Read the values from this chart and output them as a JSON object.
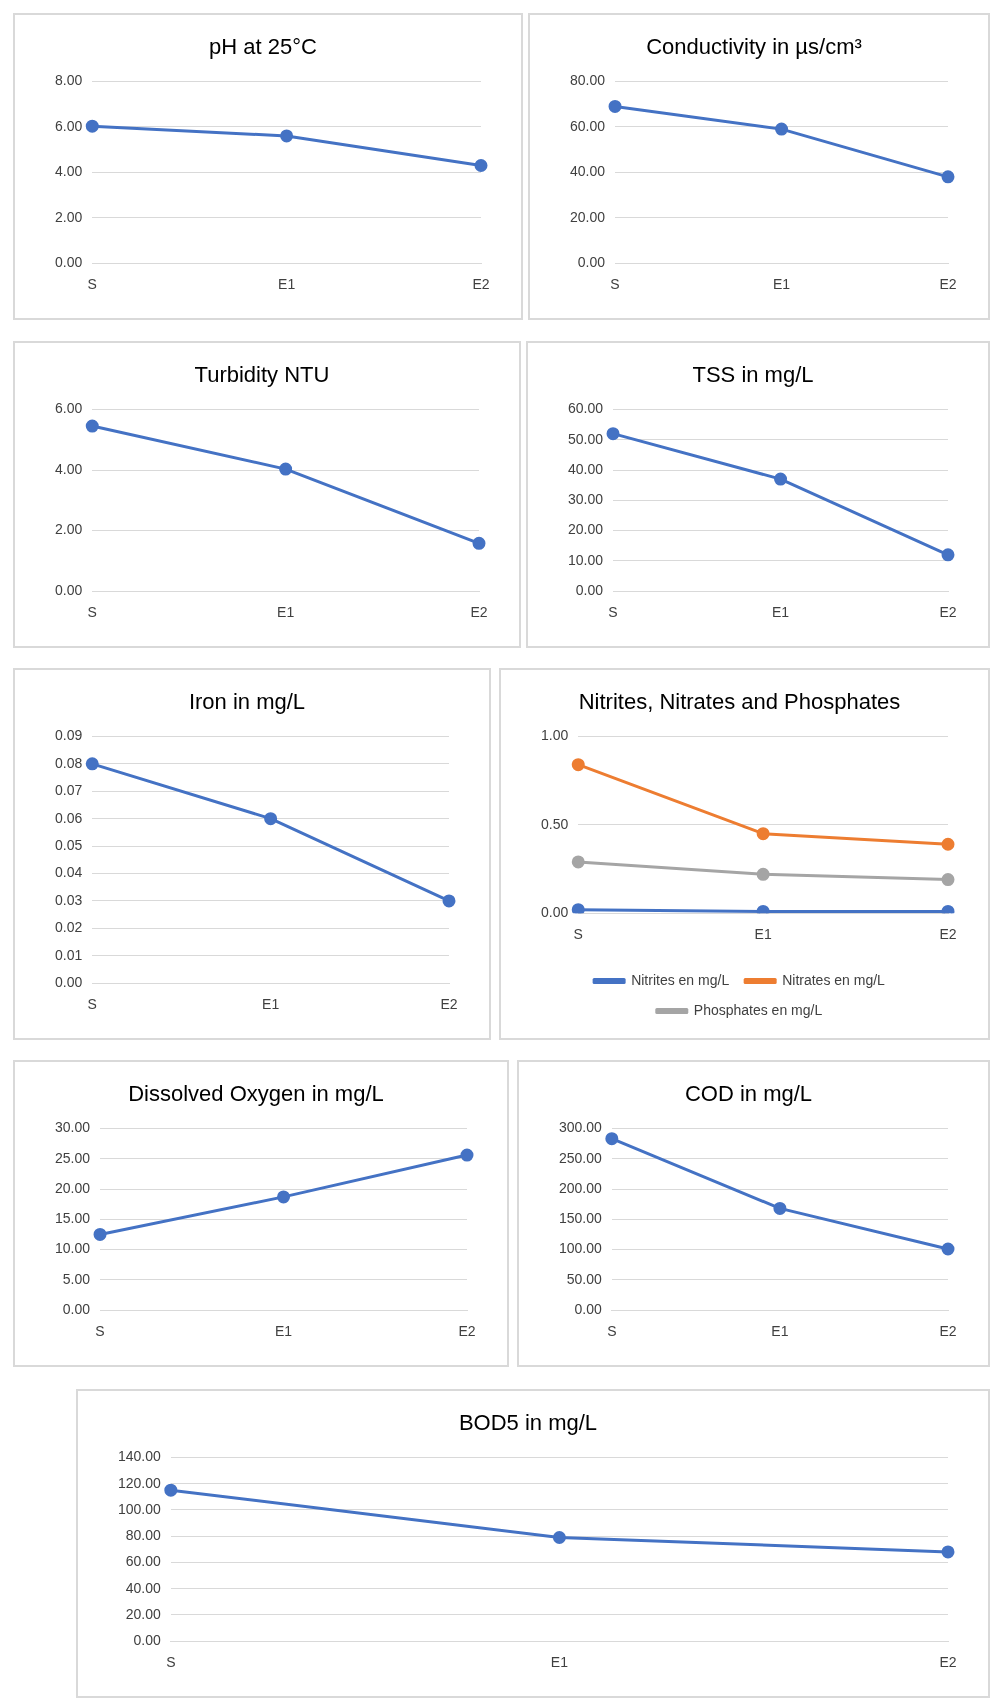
{
  "chart_data": [
    {
      "type": "line",
      "title": "pH at 25°C",
      "categories": [
        "S",
        "E1",
        "E2"
      ],
      "values": [
        6.03,
        5.6,
        4.3
      ],
      "color": "#4472c4",
      "ylim": [
        0,
        8
      ],
      "yticks": [
        {
          "value": 0,
          "label": "0.00"
        },
        {
          "value": 2,
          "label": "2.00"
        },
        {
          "value": 4,
          "label": "4.00"
        },
        {
          "value": 6,
          "label": "6.00"
        },
        {
          "value": 8,
          "label": "8.00"
        }
      ],
      "grid": "y",
      "marker": "circle"
    },
    {
      "type": "line",
      "title": "Conductivity in µs/cm³",
      "categories": [
        "S",
        "E1",
        "E2"
      ],
      "values": [
        69,
        59,
        38
      ],
      "color": "#4472c4",
      "ylim": [
        0,
        80
      ],
      "yticks": [
        {
          "value": 0,
          "label": "0.00"
        },
        {
          "value": 20,
          "label": "20.00"
        },
        {
          "value": 40,
          "label": "40.00"
        },
        {
          "value": 60,
          "label": "60.00"
        },
        {
          "value": 80,
          "label": "80.00"
        }
      ],
      "grid": "y",
      "marker": "circle"
    },
    {
      "type": "line",
      "title": "Turbidity NTU",
      "categories": [
        "S",
        "E1",
        "E2"
      ],
      "values": [
        5.45,
        4.03,
        1.58
      ],
      "color": "#4472c4",
      "ylim": [
        0,
        6
      ],
      "yticks": [
        {
          "value": 0,
          "label": "0.00"
        },
        {
          "value": 2,
          "label": "2.00"
        },
        {
          "value": 4,
          "label": "4.00"
        },
        {
          "value": 6,
          "label": "6.00"
        }
      ],
      "grid": "y",
      "marker": "circle"
    },
    {
      "type": "line",
      "title": "TSS in mg/L",
      "categories": [
        "S",
        "E1",
        "E2"
      ],
      "values": [
        52,
        37,
        12
      ],
      "color": "#4472c4",
      "ylim": [
        0,
        60
      ],
      "yticks": [
        {
          "value": 0,
          "label": "0.00"
        },
        {
          "value": 10,
          "label": "10.00"
        },
        {
          "value": 20,
          "label": "20.00"
        },
        {
          "value": 30,
          "label": "30.00"
        },
        {
          "value": 40,
          "label": "40.00"
        },
        {
          "value": 50,
          "label": "50.00"
        },
        {
          "value": 60,
          "label": "60.00"
        }
      ],
      "grid": "y",
      "marker": "circle"
    },
    {
      "type": "line",
      "title": "Iron in mg/L",
      "categories": [
        "S",
        "E1",
        "E2"
      ],
      "values": [
        0.08,
        0.06,
        0.03
      ],
      "color": "#4472c4",
      "ylim": [
        0,
        0.09
      ],
      "yticks": [
        {
          "value": 0,
          "label": "0.00"
        },
        {
          "value": 0.01,
          "label": "0.01"
        },
        {
          "value": 0.02,
          "label": "0.02"
        },
        {
          "value": 0.03,
          "label": "0.03"
        },
        {
          "value": 0.04,
          "label": "0.04"
        },
        {
          "value": 0.05,
          "label": "0.05"
        },
        {
          "value": 0.06,
          "label": "0.06"
        },
        {
          "value": 0.07,
          "label": "0.07"
        },
        {
          "value": 0.08,
          "label": "0.08"
        },
        {
          "value": 0.09,
          "label": "0.09"
        }
      ],
      "grid": "y",
      "marker": "circle"
    },
    {
      "type": "line",
      "title": "Nitrites, Nitrates and Phosphates",
      "categories": [
        "S",
        "E1",
        "E2"
      ],
      "series": [
        {
          "name": "Nitrites en mg/L",
          "color": "#4472c4",
          "values": [
            0.02,
            0.01,
            0.01
          ]
        },
        {
          "name": "Nitrates en mg/L",
          "color": "#ed7d31",
          "values": [
            0.84,
            0.45,
            0.39
          ]
        },
        {
          "name": "Phosphates en mg/L",
          "color": "#a5a5a5",
          "values": [
            0.29,
            0.22,
            0.19
          ]
        }
      ],
      "ylim": [
        0,
        1
      ],
      "yticks": [
        {
          "value": 0,
          "label": "0.00"
        },
        {
          "value": 0.5,
          "label": "0.50"
        },
        {
          "value": 1,
          "label": "1.00"
        }
      ],
      "grid": "y",
      "marker": "circle",
      "legend": "bottom"
    },
    {
      "type": "line",
      "title": "Dissolved Oxygen in mg/L",
      "categories": [
        "S",
        "E1",
        "E2"
      ],
      "values": [
        12.5,
        18.7,
        25.6
      ],
      "color": "#4472c4",
      "ylim": [
        0,
        30
      ],
      "yticks": [
        {
          "value": 0,
          "label": "0.00"
        },
        {
          "value": 5,
          "label": "5.00"
        },
        {
          "value": 10,
          "label": "10.00"
        },
        {
          "value": 15,
          "label": "15.00"
        },
        {
          "value": 20,
          "label": "20.00"
        },
        {
          "value": 25,
          "label": "25.00"
        },
        {
          "value": 30,
          "label": "30.00"
        }
      ],
      "grid": "y",
      "marker": "circle"
    },
    {
      "type": "line",
      "title": "COD in mg/L",
      "categories": [
        "S",
        "E1",
        "E2"
      ],
      "values": [
        283,
        168,
        101
      ],
      "color": "#4472c4",
      "ylim": [
        0,
        300
      ],
      "yticks": [
        {
          "value": 0,
          "label": "0.00"
        },
        {
          "value": 50,
          "label": "50.00"
        },
        {
          "value": 100,
          "label": "100.00"
        },
        {
          "value": 150,
          "label": "150.00"
        },
        {
          "value": 200,
          "label": "200.00"
        },
        {
          "value": 250,
          "label": "250.00"
        },
        {
          "value": 300,
          "label": "300.00"
        }
      ],
      "grid": "y",
      "marker": "circle"
    },
    {
      "type": "line",
      "title": "BOD5 in mg/L",
      "categories": [
        "S",
        "E1",
        "E2"
      ],
      "values": [
        115,
        79,
        68
      ],
      "color": "#4472c4",
      "ylim": [
        0,
        140
      ],
      "yticks": [
        {
          "value": 0,
          "label": "0.00"
        },
        {
          "value": 20,
          "label": "20.00"
        },
        {
          "value": 40,
          "label": "40.00"
        },
        {
          "value": 60,
          "label": "60.00"
        },
        {
          "value": 80,
          "label": "80.00"
        },
        {
          "value": 100,
          "label": "100.00"
        },
        {
          "value": 120,
          "label": "120.00"
        },
        {
          "value": 140,
          "label": "140.00"
        }
      ],
      "grid": "y",
      "marker": "circle"
    }
  ]
}
